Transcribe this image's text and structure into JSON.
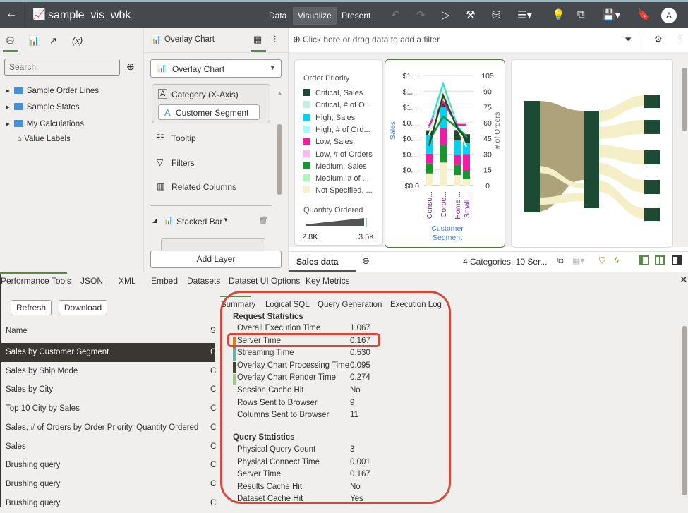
{
  "app": {
    "title": "sample_vis_wbk",
    "nav": [
      "Data",
      "Visualize",
      "Present"
    ],
    "active_nav": "Visualize",
    "avatar": "A"
  },
  "data_panel": {
    "search_placeholder": "Search",
    "tree": [
      "Sample Order Lines",
      "Sample States",
      "My Calculations",
      "Value Labels"
    ],
    "tab_fx": "(x)"
  },
  "grammar_panel": {
    "header": "Overlay Chart",
    "chart_type": "Overlay Chart",
    "category_label": "Category (X-Axis)",
    "category_value": "Customer Segment",
    "sections": [
      "Tooltip",
      "Filters",
      "Related Columns"
    ],
    "layer": "Stacked Bar",
    "add_layer": "Add Layer"
  },
  "filter_bar": {
    "placeholder": "Click here or drag data to add a filter"
  },
  "legend": {
    "title": "Order Priority",
    "items": [
      {
        "label": "Critical, Sales",
        "color": "#1d4a33"
      },
      {
        "label": "Critical, # of O...",
        "color": "#c3f0dc"
      },
      {
        "label": "High, Sales",
        "color": "#00d2f5"
      },
      {
        "label": "High, # of Ord...",
        "color": "#a8f8ff"
      },
      {
        "label": "Low, Sales",
        "color": "#f01ca3"
      },
      {
        "label": "Low, # of Orders",
        "color": "#fbb8ee"
      },
      {
        "label": "Medium, Sales",
        "color": "#16962e"
      },
      {
        "label": "Medium, # of ...",
        "color": "#aef5b8"
      },
      {
        "label": "Not Specified, ...",
        "color": "#f6f1c8"
      }
    ],
    "size_title": "Quantity Ordered",
    "size_min": "2.8K",
    "size_max": "3.5K"
  },
  "chart_data": {
    "type": "bar",
    "stacked": true,
    "categories": [
      "Consu...",
      "Corpo...",
      "Home ...",
      "Small ..."
    ],
    "xlabel": "Customer Segment",
    "ylabel": "Sales",
    "y2label": "# of Orders",
    "y_tick_labels": [
      "$0.0",
      "$0....",
      "$0....",
      "$0....",
      "$0....",
      "$1....",
      "$1....",
      "$1...."
    ],
    "y2_ticks": [
      0,
      15,
      30,
      45,
      60,
      75,
      90,
      105
    ],
    "y2lim": [
      0,
      105
    ],
    "grid": true,
    "bar_series": [
      {
        "name": "Not Specified, Sales",
        "color": "#f6f1c8",
        "values": [
          11.6,
          22,
          10,
          6
        ]
      },
      {
        "name": "Medium, Sales",
        "color": "#16962e",
        "values": [
          9.4,
          17,
          9.6,
          8
        ]
      },
      {
        "name": "Low, Sales",
        "color": "#f01ca3",
        "values": [
          9.4,
          16,
          9.4,
          16
        ]
      },
      {
        "name": "High, Sales",
        "color": "#00d2f5",
        "values": [
          17.4,
          20,
          14,
          11
        ]
      },
      {
        "name": "Critical, Sales",
        "color": "#1d4a33",
        "values": [
          5,
          4,
          10,
          8
        ]
      }
    ],
    "line_series": [
      {
        "name": "High, # of Orders",
        "color": "#33ddf0",
        "values": [
          55,
          97,
          57,
          46
        ]
      },
      {
        "name": "Low, # of Orders",
        "color": "#f01ca3",
        "values": [
          57,
          80,
          58,
          58
        ]
      },
      {
        "name": "Medium, # of Orders",
        "color": "#16962e",
        "values": [
          42,
          66,
          55,
          47
        ]
      },
      {
        "name": "Not Specified, # of Orders",
        "color": "#f3eec0",
        "values": [
          48,
          92,
          55,
          37
        ]
      },
      {
        "name": "Critical, # of Orders",
        "color": "#1d4a33",
        "values": [
          38,
          86,
          55,
          44
        ]
      }
    ]
  },
  "canvas_footer": {
    "tab": "Sales data",
    "summary": "4 Categories, 10 Ser..."
  },
  "perf": {
    "tabs": [
      "Performance Tools",
      "JSON",
      "XML",
      "Embed",
      "Datasets",
      "Dataset UI Options",
      "Key Metrics"
    ],
    "refresh": "Refresh",
    "download": "Download",
    "col_name": "Name",
    "col_s": "S",
    "rows": [
      {
        "name": "Sales by Customer Segment",
        "s": "C"
      },
      {
        "name": "Sales by Ship Mode",
        "s": "C"
      },
      {
        "name": "Sales by City",
        "s": "C"
      },
      {
        "name": "Top 10 City by Sales",
        "s": "C"
      },
      {
        "name": "Sales, # of Orders by Order Priority, Quantity Ordered",
        "s": "C"
      },
      {
        "name": "Sales",
        "s": "C"
      },
      {
        "name": "Brushing query",
        "s": "C"
      },
      {
        "name": "Brushing query",
        "s": "C"
      },
      {
        "name": "Brushing query",
        "s": "C"
      }
    ],
    "subtabs": [
      "Summary",
      "Logical SQL",
      "Query Generation",
      "Execution Log"
    ],
    "request_title": "Request Statistics",
    "request": [
      {
        "label": "Overall Execution Time",
        "value": "1.067"
      },
      {
        "label": "Server Time",
        "value": "0.167",
        "color": "#e07b12"
      },
      {
        "label": "Streaming Time",
        "value": "0.530",
        "color": "#5fb5b0"
      },
      {
        "label": "Overlay Chart Processing Time",
        "value": "0.095",
        "color": "#4d3f36"
      },
      {
        "label": "Overlay Chart Render Time",
        "value": "0.274",
        "color": "#9cc98a"
      },
      {
        "label": "Session Cache Hit",
        "value": "No"
      },
      {
        "label": "Rows Sent to Browser",
        "value": "9"
      },
      {
        "label": "Columns Sent to Browser",
        "value": "11"
      }
    ],
    "query_title": "Query Statistics",
    "query": [
      {
        "label": "Physical Query Count",
        "value": "3"
      },
      {
        "label": "Physical Connect Time",
        "value": "0.001"
      },
      {
        "label": "Server Time",
        "value": "0.167"
      },
      {
        "label": "Results Cache Hit",
        "value": "No"
      },
      {
        "label": "Dataset Cache Hit",
        "value": "Yes"
      }
    ],
    "highlight_color": "#cc4b3b"
  }
}
